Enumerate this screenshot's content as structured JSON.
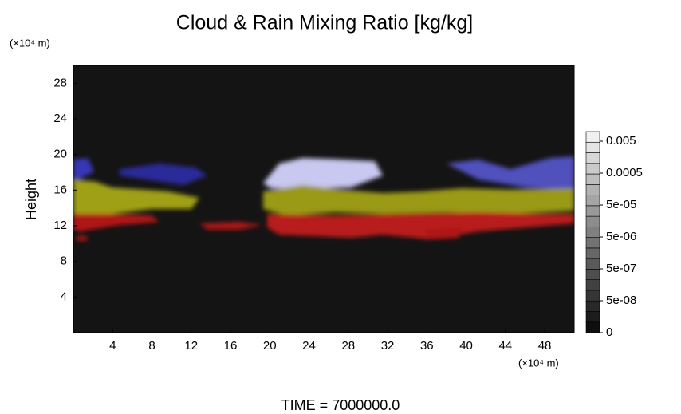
{
  "chart_data": {
    "type": "heatmap",
    "title": "Cloud & Rain Mixing Ratio [kg/kg]",
    "ylabel": "Height",
    "y_unit": "(×10⁴ m)",
    "x_unit": "(×10⁴ m)",
    "xlim": [
      0,
      51
    ],
    "xticks": [
      4,
      8,
      12,
      16,
      20,
      24,
      28,
      32,
      36,
      40,
      44,
      48
    ],
    "ylim": [
      0,
      30
    ],
    "yticks": [
      4,
      8,
      12,
      16,
      20,
      24,
      28
    ],
    "colorbar_ticks": [
      0.005,
      0.0005,
      {
        "value": 5e-05,
        "label": "5e-05"
      },
      {
        "value": 5e-06,
        "label": "5e-06"
      },
      {
        "value": 5e-07,
        "label": "5e-07"
      },
      {
        "value": 5e-08,
        "label": "5e-08"
      },
      0
    ],
    "time_label": "TIME = 7000000.0"
  }
}
